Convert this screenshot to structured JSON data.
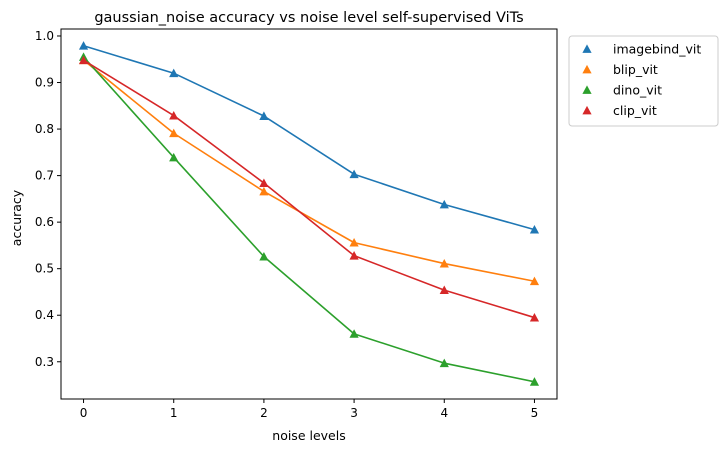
{
  "chart_data": {
    "type": "line",
    "title": "gaussian_noise accuracy vs noise level self-supervised ViTs",
    "xlabel": "noise levels",
    "ylabel": "accuracy",
    "x": [
      0,
      1,
      2,
      3,
      4,
      5
    ],
    "xlim": [
      -0.25,
      5.25
    ],
    "ylim": [
      0.22,
      1.015
    ],
    "xticks": [
      0,
      1,
      2,
      3,
      4,
      5
    ],
    "yticks": [
      0.3,
      0.4,
      0.5,
      0.6,
      0.7,
      0.8,
      0.9,
      1.0
    ],
    "grid": false,
    "legend_position": "outside upper right",
    "marker": "triangle-up",
    "series": [
      {
        "name": "imagebind_vit",
        "color": "#1f77b4",
        "values": [
          0.979,
          0.92,
          0.828,
          0.703,
          0.638,
          0.584
        ]
      },
      {
        "name": "blip_vit",
        "color": "#ff7f0e",
        "values": [
          0.948,
          0.791,
          0.666,
          0.556,
          0.511,
          0.473
        ]
      },
      {
        "name": "dino_vit",
        "color": "#2ca02c",
        "values": [
          0.955,
          0.739,
          0.526,
          0.36,
          0.297,
          0.257
        ]
      },
      {
        "name": "clip_vit",
        "color": "#d62728",
        "values": [
          0.948,
          0.829,
          0.684,
          0.528,
          0.454,
          0.395
        ]
      }
    ]
  }
}
